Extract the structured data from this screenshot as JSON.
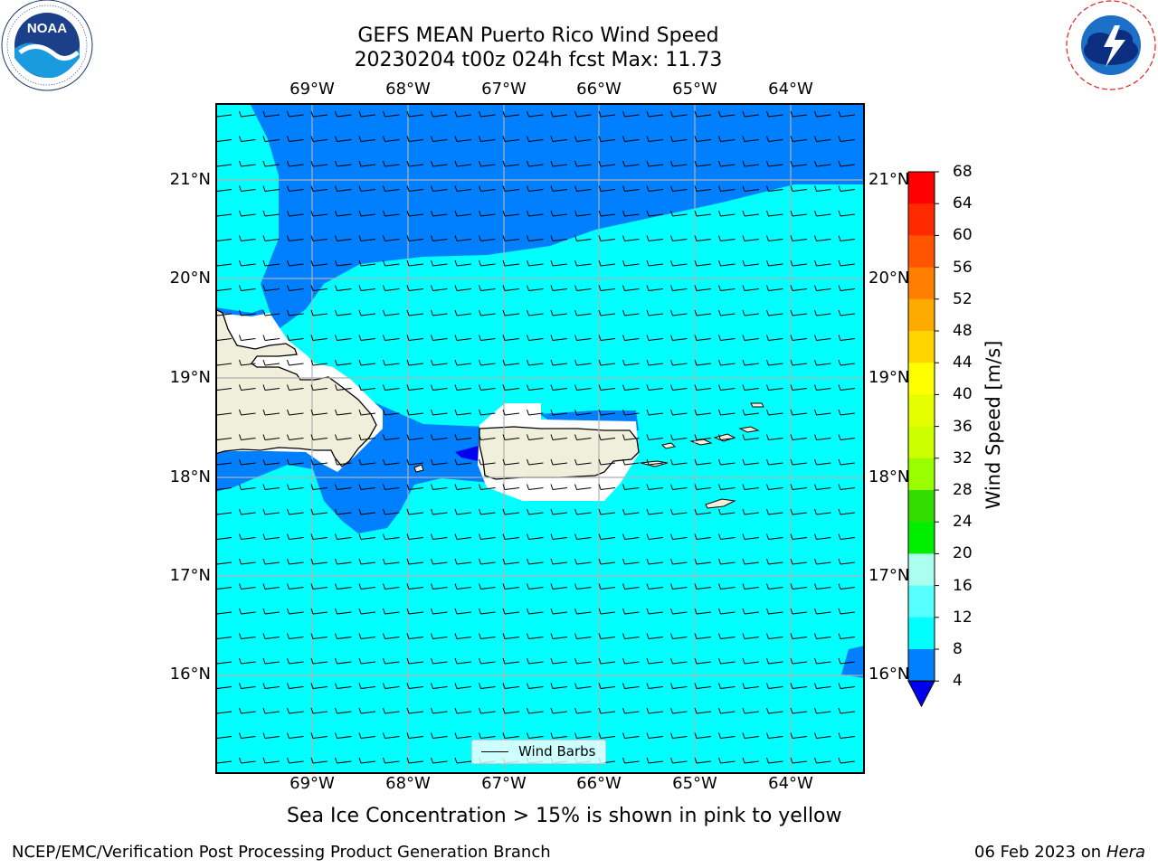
{
  "title": {
    "line1": "GEFS MEAN Puerto Rico Wind Speed",
    "line2": "20230204 t00z 024h fcst   Max: 11.73"
  },
  "map": {
    "x_ticks": [
      "69°W",
      "68°W",
      "67°W",
      "66°W",
      "65°W",
      "64°W"
    ],
    "y_ticks": [
      "21°N",
      "20°N",
      "19°N",
      "18°N",
      "17°N",
      "16°N"
    ],
    "legend": "Wind Barbs"
  },
  "colorbar": {
    "title": "Wind Speed [m/s]",
    "tick_labels": [
      "68",
      "64",
      "60",
      "56",
      "52",
      "48",
      "44",
      "40",
      "36",
      "32",
      "28",
      "24",
      "20",
      "16",
      "12",
      "8",
      "4"
    ],
    "colors": [
      "#ff0000",
      "#ff2200",
      "#ff5500",
      "#ff8800",
      "#ffaa00",
      "#ffcc00",
      "#ffee00",
      "#eeff00",
      "#ccff00",
      "#aaff00",
      "#55dd00",
      "#00ee00",
      "#00ff33",
      "#55ee77",
      "#aaffee",
      "#55ffff",
      "#00ffff",
      "#0080ff",
      "#0000ee"
    ],
    "extend_color": "#0000ee"
  },
  "note": "Sea Ice Concentration > 15% is shown in pink to yellow",
  "footer": {
    "left": "NCEP/EMC/Verification Post Processing Product Generation Branch",
    "right_date": "06 Feb 2023 on",
    "right_host": "Hera"
  },
  "logos": {
    "left": "NOAA",
    "right": "NATIONAL WEATHER SERVICE"
  }
}
